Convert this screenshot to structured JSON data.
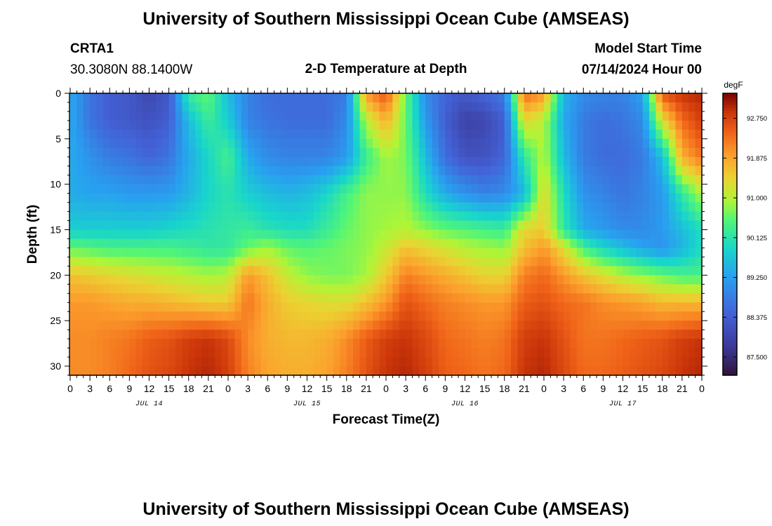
{
  "header": {
    "title": "University of Southern Mississippi Ocean Cube (AMSEAS)",
    "station_id": "CRTA1",
    "coordinates": "30.3080N  88.1400W",
    "plot_title": "2-D Temperature at Depth",
    "model_start_label": "Model Start Time",
    "model_start_value": "07/14/2024 Hour 00"
  },
  "footer": {
    "title": "University of Southern Mississippi Ocean Cube (AMSEAS)"
  },
  "chart_data": {
    "type": "heatmap",
    "xlabel": "Forecast Time(Z)",
    "ylabel": "Depth (ft)",
    "x_range_hours": [
      0,
      96
    ],
    "y_range_ft": [
      0,
      31
    ],
    "x_tick_labels": [
      "0",
      "3",
      "6",
      "9",
      "12",
      "15",
      "18",
      "21",
      "0",
      "3",
      "6",
      "9",
      "12",
      "15",
      "18",
      "21",
      "0",
      "3",
      "6",
      "9",
      "12",
      "15",
      "18",
      "21",
      "0",
      "3",
      "6",
      "9",
      "12",
      "15",
      "18",
      "21",
      "0"
    ],
    "x_tick_step_hours": 3,
    "date_labels": [
      {
        "label": "JUL 14",
        "hour": 12
      },
      {
        "label": "JUL 15",
        "hour": 36
      },
      {
        "label": "JUL 16",
        "hour": 60
      },
      {
        "label": "JUL 17",
        "hour": 84
      }
    ],
    "y_ticks": [
      0,
      5,
      10,
      15,
      20,
      25,
      30
    ],
    "colorbar": {
      "unit": "degF",
      "min": 87.1,
      "max": 93.3,
      "tick_values": [
        87.5,
        88.375,
        89.25,
        90.125,
        91.0,
        91.875,
        92.75
      ],
      "tick_labels": [
        "87.500",
        "88.375",
        "89.250",
        "90.125",
        "91.000",
        "91.875",
        "92.750"
      ]
    },
    "temperature_structure_degF": {
      "depth_ft": [
        0,
        3,
        7,
        11,
        15,
        17,
        20,
        23,
        27,
        31
      ],
      "time_hours": [
        0,
        3,
        6,
        9,
        12,
        15,
        18,
        21,
        24,
        27,
        30,
        33,
        36,
        39,
        42,
        45,
        48,
        51,
        54,
        57,
        60,
        63,
        66,
        69,
        72,
        75,
        78,
        81,
        84,
        87,
        90,
        93,
        96
      ],
      "values": [
        [
          89.4,
          88.7,
          88.4,
          88.3,
          88.0,
          88.3,
          90.3,
          90.6,
          89.6,
          88.9,
          88.6,
          88.6,
          88.6,
          88.6,
          88.8,
          92.0,
          92.6,
          90.6,
          89.0,
          88.5,
          88.3,
          88.5,
          88.8,
          92.4,
          92.0,
          89.5,
          89.0,
          88.9,
          88.9,
          89.3,
          92.6,
          92.9,
          93.0
        ],
        [
          89.4,
          88.7,
          88.4,
          88.3,
          88.2,
          88.4,
          89.6,
          90.3,
          89.8,
          88.9,
          88.7,
          88.6,
          88.6,
          88.6,
          89.0,
          91.0,
          91.8,
          90.6,
          89.2,
          88.4,
          87.9,
          88.0,
          88.4,
          91.4,
          91.0,
          89.4,
          88.8,
          88.6,
          88.7,
          89.0,
          91.3,
          92.4,
          92.8
        ],
        [
          89.4,
          89.1,
          88.8,
          88.7,
          88.5,
          88.7,
          89.4,
          89.9,
          90.4,
          89.4,
          89.0,
          88.9,
          88.9,
          88.9,
          89.2,
          90.3,
          90.9,
          90.7,
          89.6,
          88.6,
          88.2,
          88.2,
          88.5,
          90.2,
          91.0,
          89.6,
          88.8,
          88.6,
          88.6,
          88.8,
          89.6,
          91.8,
          92.3
        ],
        [
          89.4,
          89.3,
          89.3,
          89.2,
          89.2,
          89.2,
          89.5,
          89.9,
          90.1,
          89.8,
          89.6,
          89.5,
          89.6,
          89.9,
          90.4,
          90.8,
          90.8,
          90.8,
          90.0,
          89.4,
          89.1,
          88.9,
          89.0,
          89.5,
          91.4,
          90.0,
          89.1,
          88.9,
          88.7,
          88.9,
          89.2,
          90.2,
          91.0
        ],
        [
          89.8,
          89.8,
          89.8,
          89.8,
          89.8,
          89.9,
          90.0,
          90.1,
          90.2,
          90.3,
          90.1,
          90.0,
          90.0,
          90.3,
          90.6,
          90.8,
          90.9,
          91.0,
          90.8,
          90.6,
          90.5,
          90.4,
          90.3,
          91.4,
          91.5,
          90.2,
          89.4,
          89.2,
          89.0,
          89.0,
          89.2,
          89.6,
          90.0
        ],
        [
          90.6,
          90.5,
          90.4,
          90.4,
          90.4,
          90.4,
          90.3,
          90.2,
          90.2,
          90.6,
          90.9,
          90.6,
          90.5,
          90.6,
          90.7,
          90.8,
          91.1,
          91.6,
          91.4,
          91.2,
          91.0,
          90.9,
          90.8,
          91.6,
          92.0,
          91.3,
          90.4,
          89.9,
          89.6,
          89.3,
          89.1,
          89.5,
          90.0
        ],
        [
          91.6,
          91.5,
          91.4,
          91.3,
          91.2,
          91.1,
          91.0,
          90.9,
          91.0,
          92.0,
          91.6,
          91.1,
          90.8,
          90.7,
          90.7,
          90.9,
          91.5,
          92.2,
          92.0,
          91.8,
          91.6,
          91.4,
          91.4,
          92.2,
          92.4,
          92.0,
          91.6,
          91.3,
          91.0,
          90.8,
          90.6,
          90.4,
          90.4
        ],
        [
          92.0,
          92.0,
          91.9,
          91.8,
          91.8,
          91.7,
          91.6,
          91.5,
          91.5,
          92.3,
          91.8,
          91.5,
          91.4,
          91.3,
          91.3,
          91.6,
          92.0,
          92.6,
          92.4,
          92.2,
          92.1,
          92.0,
          92.0,
          92.5,
          92.6,
          92.4,
          92.3,
          92.1,
          92.0,
          91.9,
          91.7,
          91.7,
          91.7
        ],
        [
          92.1,
          92.1,
          92.2,
          92.3,
          92.5,
          92.6,
          92.8,
          92.9,
          92.7,
          92.1,
          91.8,
          91.7,
          91.7,
          91.8,
          92.1,
          92.5,
          92.8,
          92.9,
          92.7,
          92.4,
          92.3,
          92.2,
          92.3,
          92.8,
          92.9,
          92.6,
          92.3,
          92.3,
          92.4,
          92.5,
          92.6,
          92.8,
          92.9
        ],
        [
          92.1,
          92.1,
          92.2,
          92.4,
          92.6,
          92.7,
          92.9,
          93.0,
          92.8,
          92.2,
          91.9,
          91.8,
          91.8,
          91.9,
          92.2,
          92.6,
          92.9,
          93.0,
          92.8,
          92.5,
          92.4,
          92.3,
          92.4,
          92.9,
          93.0,
          92.7,
          92.4,
          92.4,
          92.5,
          92.6,
          92.7,
          92.9,
          93.0
        ]
      ]
    }
  }
}
